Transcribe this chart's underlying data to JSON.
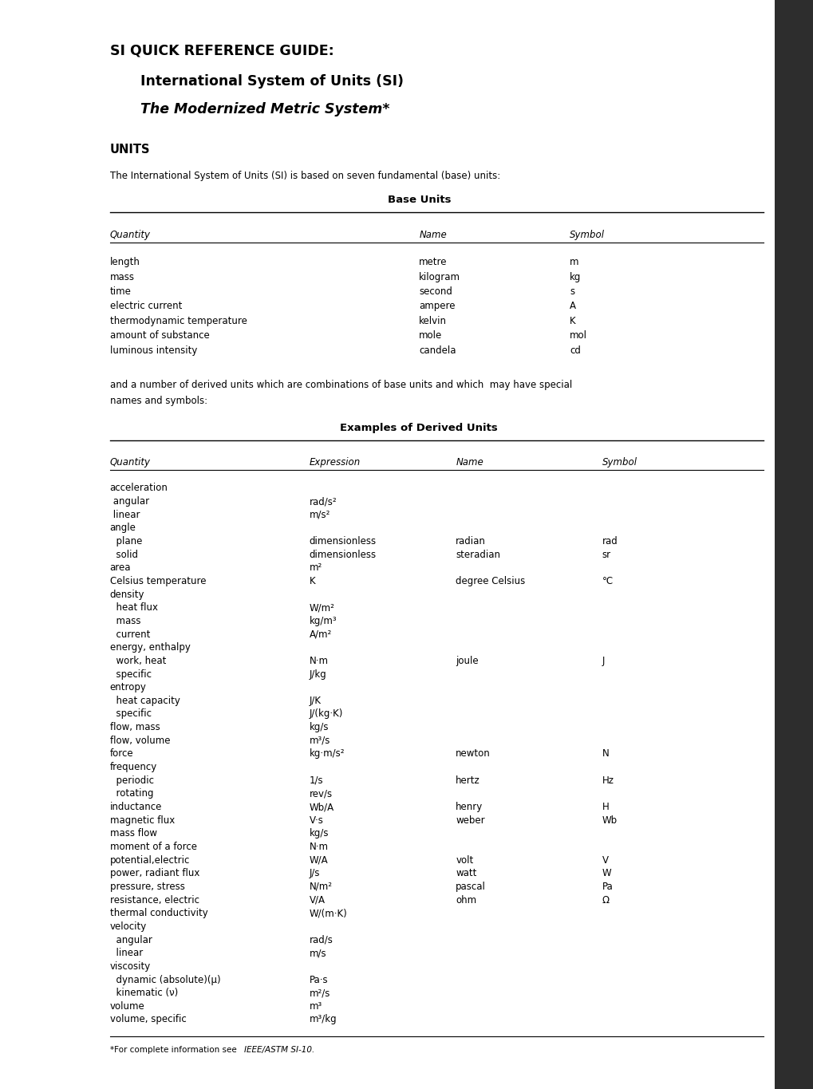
{
  "title_line1": "SI QUICK REFERENCE GUIDE:",
  "title_line2": "International System of Units (SI)",
  "title_line3": "The Modernized Metric System*",
  "units_heading": "UNITS",
  "intro_text": "The International System of Units (SI) is based on seven fundamental (base) units:",
  "base_table_title": "Base Units",
  "base_headers": [
    "Quantity",
    "Name",
    "Symbol"
  ],
  "base_rows": [
    [
      "length",
      "metre",
      "m"
    ],
    [
      "mass",
      "kilogram",
      "kg"
    ],
    [
      "time",
      "second",
      "s"
    ],
    [
      "electric current",
      "ampere",
      "A"
    ],
    [
      "thermodynamic temperature",
      "kelvin",
      "K"
    ],
    [
      "amount of substance",
      "mole",
      "mol"
    ],
    [
      "luminous intensity",
      "candela",
      "cd"
    ]
  ],
  "middle_text": "and a number of derived units which are combinations of base units and which  may have special\nnames and symbols:",
  "derived_table_title": "Examples of Derived Units",
  "derived_headers": [
    "Quantity",
    "Expression",
    "Name",
    "Symbol"
  ],
  "derived_rows": [
    [
      "acceleration",
      "",
      "",
      ""
    ],
    [
      " angular",
      "rad/s²",
      "",
      ""
    ],
    [
      " linear",
      "m/s²",
      "",
      ""
    ],
    [
      "angle",
      "",
      "",
      ""
    ],
    [
      "  plane",
      "dimensionless",
      "radian",
      "rad"
    ],
    [
      "  solid",
      "dimensionless",
      "steradian",
      "sr"
    ],
    [
      "area",
      "m²",
      "",
      ""
    ],
    [
      "Celsius temperature",
      "K",
      "degree Celsius",
      "°C"
    ],
    [
      "density",
      "",
      "",
      ""
    ],
    [
      "  heat flux",
      "W/m²",
      "",
      ""
    ],
    [
      "  mass",
      "kg/m³",
      "",
      ""
    ],
    [
      "  current",
      "A/m²",
      "",
      ""
    ],
    [
      "energy, enthalpy",
      "",
      "",
      ""
    ],
    [
      "  work, heat",
      "N·m",
      "joule",
      "J"
    ],
    [
      "  specific",
      "J/kg",
      "",
      ""
    ],
    [
      "entropy",
      "",
      "",
      ""
    ],
    [
      "  heat capacity",
      "J/K",
      "",
      ""
    ],
    [
      "  specific",
      "J/(kg·K)",
      "",
      ""
    ],
    [
      "flow, mass",
      "kg/s",
      "",
      ""
    ],
    [
      "flow, volume",
      "m³/s",
      "",
      ""
    ],
    [
      "force",
      "kg·m/s²",
      "newton",
      "N"
    ],
    [
      "frequency",
      "",
      "",
      ""
    ],
    [
      "  periodic",
      "1/s",
      "hertz",
      "Hz"
    ],
    [
      "  rotating",
      "rev/s",
      "",
      ""
    ],
    [
      "inductance",
      "Wb/A",
      "henry",
      "H"
    ],
    [
      "magnetic flux",
      "V·s",
      "weber",
      "Wb"
    ],
    [
      "mass flow",
      "kg/s",
      "",
      ""
    ],
    [
      "moment of a force",
      "N·m",
      "",
      ""
    ],
    [
      "potential,electric",
      "W/A",
      "volt",
      "V"
    ],
    [
      "power, radiant flux",
      "J/s",
      "watt",
      "W"
    ],
    [
      "pressure, stress",
      "N/m²",
      "pascal",
      "Pa"
    ],
    [
      "resistance, electric",
      "V/A",
      "ohm",
      "Ω"
    ],
    [
      "thermal conductivity",
      "W/(m·K)",
      "",
      ""
    ],
    [
      "velocity",
      "",
      "",
      ""
    ],
    [
      "  angular",
      "rad/s",
      "",
      ""
    ],
    [
      "  linear",
      "m/s",
      "",
      ""
    ],
    [
      "viscosity",
      "",
      "",
      ""
    ],
    [
      "  dynamic (absolute)(μ)",
      "Pa·s",
      "",
      ""
    ],
    [
      "  kinematic (ν)",
      "m²/s",
      "",
      ""
    ],
    [
      "volume",
      "m³",
      "",
      ""
    ],
    [
      "volume, specific",
      "m³/kg",
      "",
      ""
    ]
  ],
  "footnote_normal": "*For complete information see ",
  "footnote_italic": "IEEE/ASTM SI-10.",
  "bg_color": "#ffffff",
  "text_color": "#000000",
  "sidebar_color": "#2d2d2d"
}
